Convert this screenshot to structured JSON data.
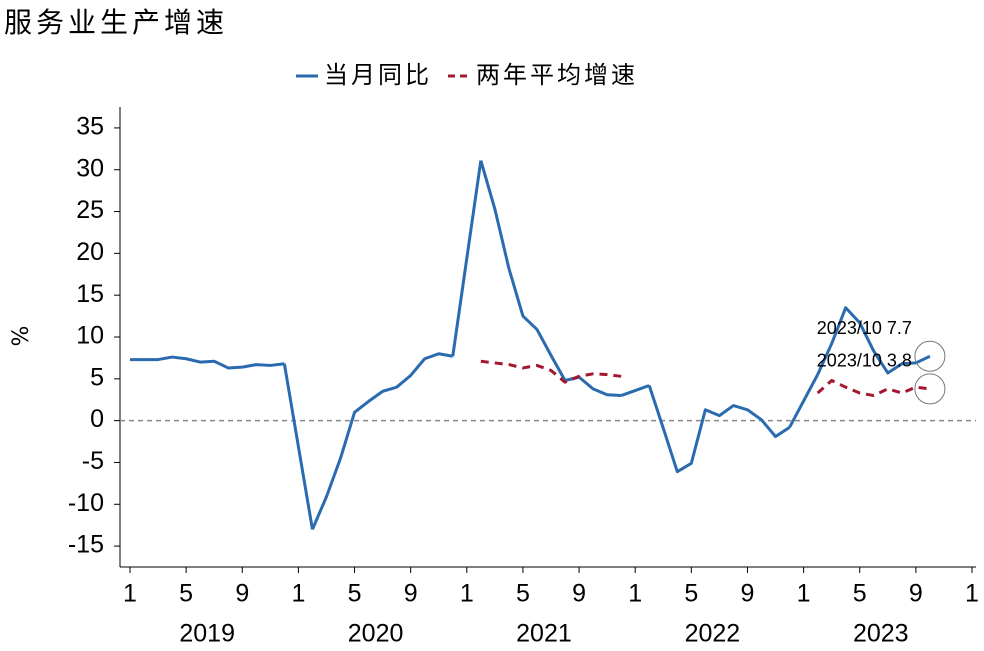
{
  "chart_data": {
    "type": "line",
    "title": "服务业生产增速",
    "y_label": "%",
    "categories": [
      "1",
      null,
      null,
      null,
      "5",
      null,
      null,
      null,
      "9",
      null,
      null,
      null,
      "1",
      null,
      null,
      null,
      "5",
      null,
      null,
      null,
      "9",
      null,
      null,
      null,
      "1",
      null,
      null,
      null,
      "5",
      null,
      null,
      null,
      "9",
      null,
      null,
      null,
      "1",
      null,
      null,
      null,
      "5",
      null,
      null,
      null,
      "9",
      null,
      null,
      null,
      "1",
      null,
      null,
      null,
      "5",
      null,
      null,
      null,
      "9",
      null,
      null,
      null,
      "1"
    ],
    "year_labels": [
      "2019",
      "2020",
      "2021",
      "2022",
      "2023"
    ],
    "series": [
      {
        "name": "当月同比",
        "color": "#2a6bb0",
        "dashed": false,
        "connect_gaps": true,
        "values": [
          7.3,
          7.3,
          7.3,
          7.6,
          7.4,
          7.0,
          7.1,
          6.3,
          6.4,
          6.7,
          6.6,
          6.8,
          null,
          -13.0,
          -9.1,
          -4.5,
          1.0,
          2.3,
          3.5,
          4.0,
          5.4,
          7.4,
          8.0,
          7.7,
          null,
          31.1,
          25.3,
          18.2,
          12.5,
          10.9,
          7.8,
          4.8,
          5.2,
          3.8,
          3.1,
          3.0,
          null,
          4.2,
          -0.9,
          -6.1,
          -5.1,
          1.3,
          0.6,
          1.8,
          1.3,
          0.1,
          -1.9,
          -0.8,
          null,
          5.5,
          9.2,
          13.5,
          11.7,
          8.3,
          5.7,
          6.8,
          6.9,
          7.7,
          null,
          null,
          null
        ]
      },
      {
        "name": "两年平均增速",
        "color": "#a3182e",
        "dashed": true,
        "connect_gaps": false,
        "values": [
          null,
          null,
          null,
          null,
          null,
          null,
          null,
          null,
          null,
          null,
          null,
          null,
          null,
          null,
          null,
          null,
          null,
          null,
          null,
          null,
          null,
          null,
          null,
          null,
          null,
          7.1,
          6.9,
          6.7,
          6.3,
          6.6,
          6.0,
          4.6,
          5.3,
          5.6,
          5.5,
          5.3,
          null,
          null,
          null,
          null,
          null,
          null,
          null,
          null,
          null,
          null,
          null,
          null,
          null,
          3.3,
          4.8,
          4.0,
          3.3,
          3.0,
          3.8,
          3.3,
          4.0,
          3.8,
          null,
          null,
          null
        ]
      }
    ],
    "annotations": [
      "2023/10 7.7",
      "2023/10 3.8"
    ],
    "ylim": [
      -17.5,
      37.5
    ],
    "yticks": [
      -15,
      -10,
      -5,
      0,
      5,
      10,
      15,
      20,
      25,
      30,
      35
    ],
    "zero_line": true
  }
}
